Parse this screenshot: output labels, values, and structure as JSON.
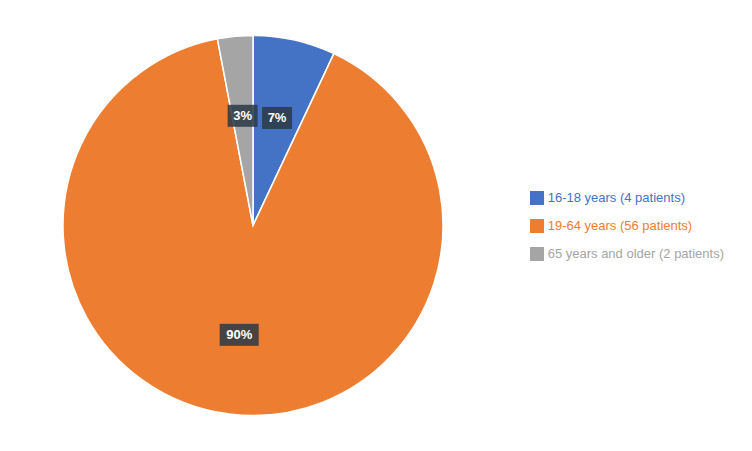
{
  "chart_data": {
    "type": "pie",
    "categories": [
      "16-18 years (4 patients)",
      "19-64 years (56 patients)",
      "65 years and older (2 patients)"
    ],
    "values": [
      7,
      90,
      3
    ],
    "value_labels": [
      "7%",
      "90%",
      "3%"
    ],
    "colors": [
      "#4472C4",
      "#ED7D31",
      "#A5A5A5"
    ],
    "data_labels": true,
    "legend": "right"
  }
}
